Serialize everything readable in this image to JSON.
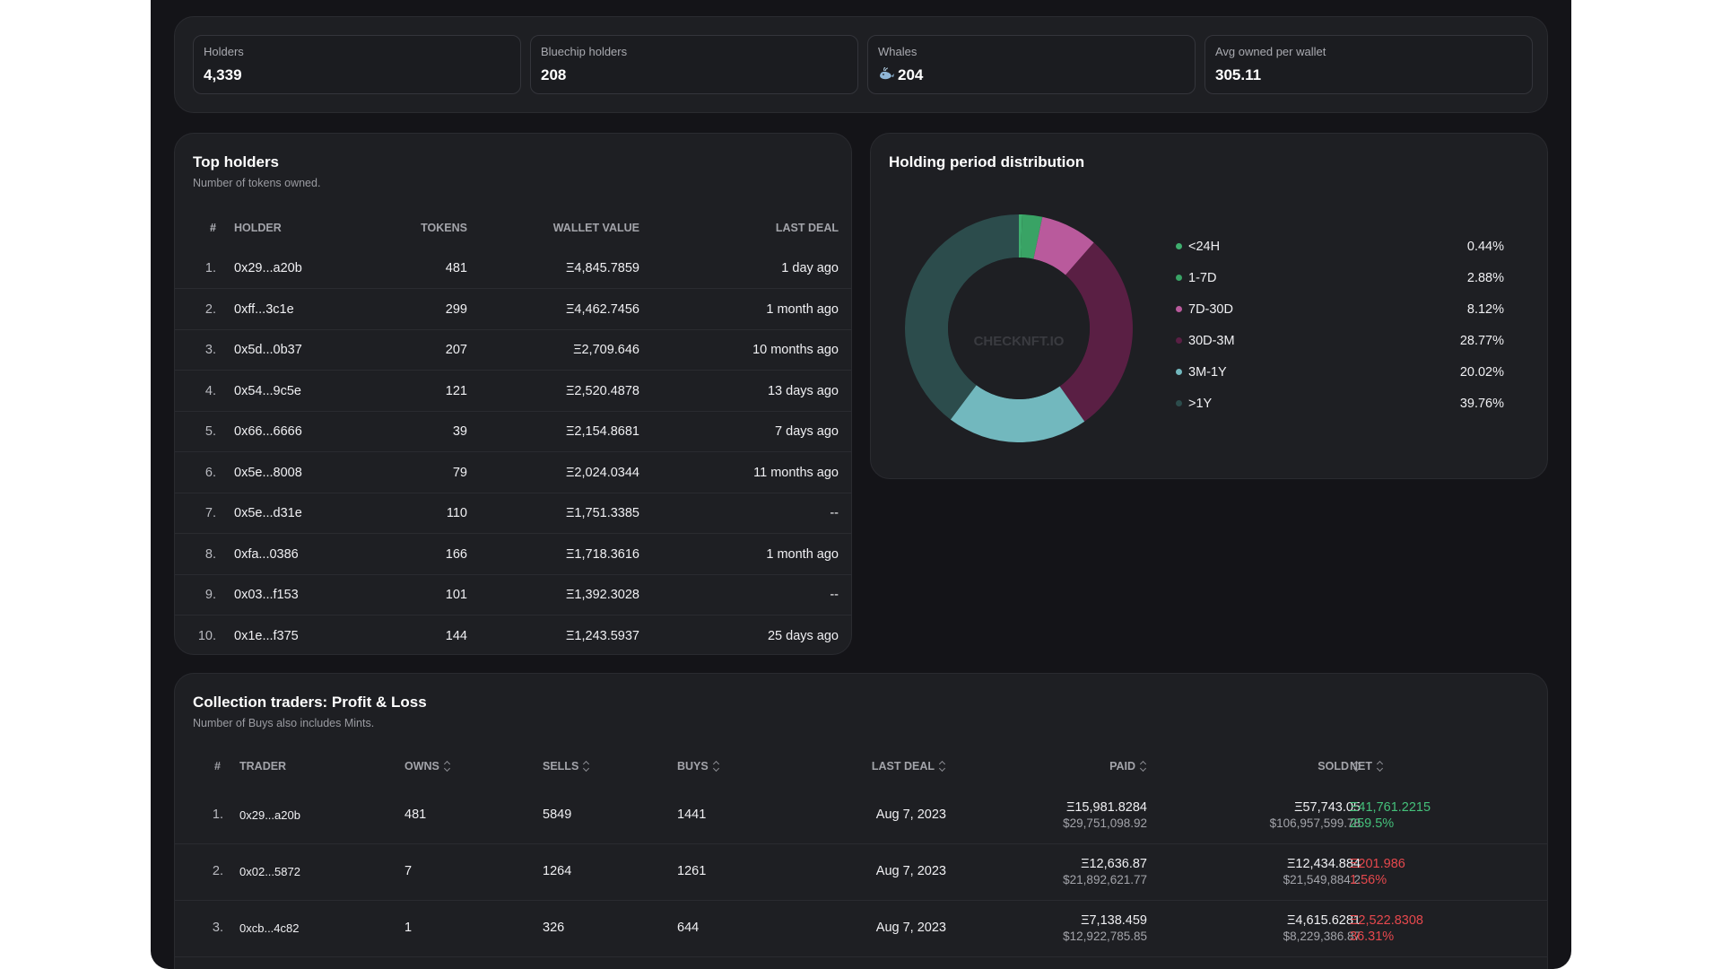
{
  "stats": [
    {
      "label": "Holders",
      "value": "4,339"
    },
    {
      "label": "Bluechip holders",
      "value": "208"
    },
    {
      "label": "Whales",
      "value": "204",
      "icon": "whale-icon"
    },
    {
      "label": "Avg owned per wallet",
      "value": "305.11"
    }
  ],
  "top_holders": {
    "title": "Top holders",
    "subtitle": "Number of tokens owned.",
    "columns": [
      "#",
      "HOLDER",
      "TOKENS",
      "WALLET VALUE",
      "LAST DEAL"
    ],
    "rows": [
      {
        "num": "1.",
        "holder": "0x29...a20b",
        "tokens": "481",
        "wallet_value": "Ξ4,845.7859",
        "last_deal": "1 day ago"
      },
      {
        "num": "2.",
        "holder": "0xff...3c1e",
        "tokens": "299",
        "wallet_value": "Ξ4,462.7456",
        "last_deal": "1 month ago"
      },
      {
        "num": "3.",
        "holder": "0x5d...0b37",
        "tokens": "207",
        "wallet_value": "Ξ2,709.646",
        "last_deal": "10 months ago"
      },
      {
        "num": "4.",
        "holder": "0x54...9c5e",
        "tokens": "121",
        "wallet_value": "Ξ2,520.4878",
        "last_deal": "13 days ago"
      },
      {
        "num": "5.",
        "holder": "0x66...6666",
        "tokens": "39",
        "wallet_value": "Ξ2,154.8681",
        "last_deal": "7 days ago"
      },
      {
        "num": "6.",
        "holder": "0x5e...8008",
        "tokens": "79",
        "wallet_value": "Ξ2,024.0344",
        "last_deal": "11 months ago"
      },
      {
        "num": "7.",
        "holder": "0x5e...d31e",
        "tokens": "110",
        "wallet_value": "Ξ1,751.3385",
        "last_deal": "--"
      },
      {
        "num": "8.",
        "holder": "0xfa...0386",
        "tokens": "166",
        "wallet_value": "Ξ1,718.3616",
        "last_deal": "1 month ago"
      },
      {
        "num": "9.",
        "holder": "0x03...f153",
        "tokens": "101",
        "wallet_value": "Ξ1,392.3028",
        "last_deal": "--"
      },
      {
        "num": "10.",
        "holder": "0x1e...f375",
        "tokens": "144",
        "wallet_value": "Ξ1,243.5937",
        "last_deal": "25 days ago"
      }
    ]
  },
  "distribution": {
    "title": "Holding period distribution",
    "watermark": "CHECKNFT.IO",
    "slices": [
      {
        "label": "<24H",
        "value": "0.44%",
        "pct": 0.44,
        "color": "#3fae6e"
      },
      {
        "label": "1-7D",
        "value": "2.88%",
        "pct": 2.88,
        "color": "#39a365"
      },
      {
        "label": "7D-30D",
        "value": "8.12%",
        "pct": 8.12,
        "color": "#b95a9c"
      },
      {
        "label": "30D-3M",
        "value": "28.77%",
        "pct": 28.77,
        "color": "#5a1f44"
      },
      {
        "label": "3M-1Y",
        "value": "20.02%",
        "pct": 20.02,
        "color": "#72b8be"
      },
      {
        "label": ">1Y",
        "value": "39.76%",
        "pct": 39.76,
        "color": "#2c4c4c"
      }
    ]
  },
  "traders": {
    "title": "Collection traders: Profit & Loss",
    "subtitle": "Number of Buys also includes Mints.",
    "columns": [
      "#",
      "TRADER",
      "OWNS",
      "SELLS",
      "BUYS",
      "LAST DEAL",
      "PAID",
      "SOLD",
      "NET"
    ],
    "rows": [
      {
        "num": "1.",
        "trader": "0x29...a20b",
        "owns": "481",
        "sells": "5849",
        "buys": "1441",
        "last_deal": "Aug 7, 2023",
        "paid_eth": "Ξ15,981.8284",
        "paid_usd": "$29,751,098.92",
        "sold_eth": "Ξ57,743.05",
        "sold_usd": "$106,957,599.78",
        "net_eth": "Ξ41,761.2215",
        "net_pct": "259.5%",
        "net_sign": "pos"
      },
      {
        "num": "2.",
        "trader": "0x02...5872",
        "owns": "7",
        "sells": "1264",
        "buys": "1261",
        "last_deal": "Aug 7, 2023",
        "paid_eth": "Ξ12,636.87",
        "paid_usd": "$21,892,621.77",
        "sold_eth": "Ξ12,434.884",
        "sold_usd": "$21,549,884.2",
        "net_eth": "Ξ201.986",
        "net_pct": "1.56%",
        "net_sign": "neg"
      },
      {
        "num": "3.",
        "trader": "0xcb...4c82",
        "owns": "1",
        "sells": "326",
        "buys": "644",
        "last_deal": "Aug 7, 2023",
        "paid_eth": "Ξ7,138.459",
        "paid_usd": "$12,922,785.85",
        "sold_eth": "Ξ4,615.6281",
        "sold_usd": "$8,229,386.87",
        "net_eth": "Ξ2,522.8308",
        "net_pct": "36.31%",
        "net_sign": "neg"
      }
    ]
  }
}
